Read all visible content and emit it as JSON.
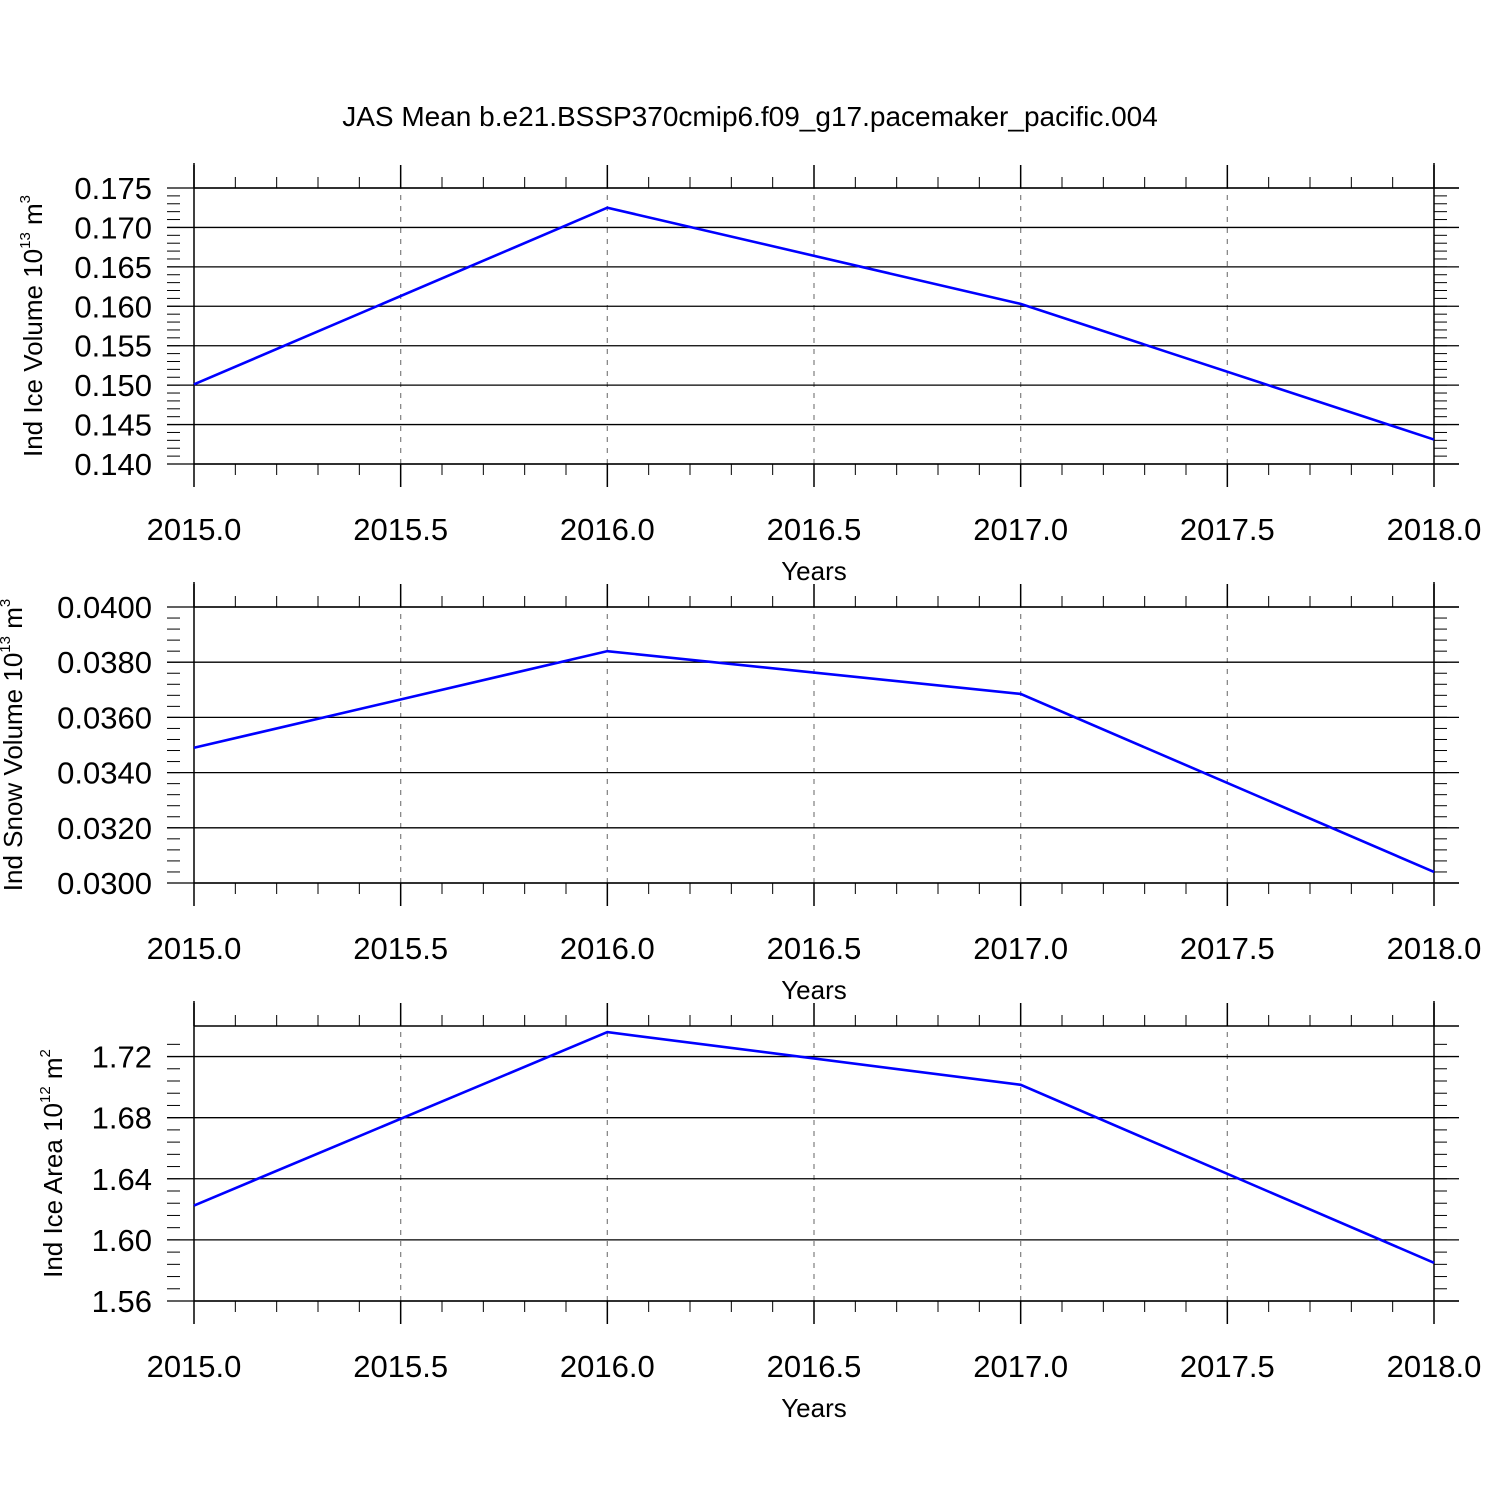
{
  "title": "JAS Mean b.e21.BSSP370cmip6.f09_g17.pacemaker_pacific.004",
  "colors": {
    "line": "#0000ff",
    "frame": "#000000",
    "grid": "#888888"
  },
  "chart_data": [
    {
      "type": "line",
      "xlabel": "Years",
      "ylabel": {
        "prefix": "Ind Ice Volume 10",
        "exp": "13",
        "unit": " m",
        "unit_exp": "3"
      },
      "x": [
        2015,
        2016,
        2017,
        2018
      ],
      "series": [
        {
          "values": [
            0.1501,
            0.1725,
            0.1603,
            0.1431
          ]
        }
      ],
      "xlim": [
        2015,
        2018
      ],
      "ylim": [
        0.14,
        0.175
      ],
      "xticks": [
        2015.0,
        2015.5,
        2016.0,
        2016.5,
        2017.0,
        2017.5,
        2018.0
      ],
      "xtick_labels": [
        "2015.0",
        "2015.5",
        "2016.0",
        "2016.5",
        "2017.0",
        "2017.5",
        "2018.0"
      ],
      "yticks": [
        0.14,
        0.145,
        0.15,
        0.155,
        0.16,
        0.165,
        0.17,
        0.175
      ],
      "ytick_labels": [
        "0.140",
        "0.145",
        "0.150",
        "0.155",
        "0.160",
        "0.165",
        "0.170",
        "0.175"
      ],
      "x_minor_step": 0.1,
      "y_minor_step": 0.001,
      "grid": "vertical dashed at major x ticks"
    },
    {
      "type": "line",
      "xlabel": "Years",
      "ylabel": {
        "prefix": "Ind Snow Volume 10",
        "exp": "13",
        "unit": " m",
        "unit_exp": "3"
      },
      "x": [
        2015,
        2016,
        2017,
        2018
      ],
      "series": [
        {
          "values": [
            0.0349,
            0.0384,
            0.03685,
            0.0304
          ]
        }
      ],
      "xlim": [
        2015,
        2018
      ],
      "ylim": [
        0.03,
        0.04
      ],
      "xticks": [
        2015.0,
        2015.5,
        2016.0,
        2016.5,
        2017.0,
        2017.5,
        2018.0
      ],
      "xtick_labels": [
        "2015.0",
        "2015.5",
        "2016.0",
        "2016.5",
        "2017.0",
        "2017.5",
        "2018.0"
      ],
      "yticks": [
        0.03,
        0.032,
        0.034,
        0.036,
        0.038,
        0.04
      ],
      "ytick_labels": [
        "0.0300",
        "0.0320",
        "0.0340",
        "0.0360",
        "0.0380",
        "0.0400"
      ],
      "x_minor_step": 0.1,
      "y_minor_step": 0.0004,
      "grid": "vertical dashed at major x ticks"
    },
    {
      "type": "line",
      "xlabel": "Years",
      "ylabel": {
        "prefix": "Ind Ice Area 10",
        "exp": "12",
        "unit": " m",
        "unit_exp": "2"
      },
      "x": [
        2015,
        2016,
        2017,
        2018
      ],
      "series": [
        {
          "values": [
            1.6225,
            1.736,
            1.7015,
            1.585
          ]
        }
      ],
      "xlim": [
        2015,
        2018
      ],
      "ylim": [
        1.56,
        1.74
      ],
      "xticks": [
        2015.0,
        2015.5,
        2016.0,
        2016.5,
        2017.0,
        2017.5,
        2018.0
      ],
      "xtick_labels": [
        "2015.0",
        "2015.5",
        "2016.0",
        "2016.5",
        "2017.0",
        "2017.5",
        "2018.0"
      ],
      "yticks": [
        1.56,
        1.6,
        1.64,
        1.68,
        1.72
      ],
      "ytick_labels": [
        "1.56",
        "1.60",
        "1.64",
        "1.68",
        "1.72"
      ],
      "x_minor_step": 0.1,
      "y_minor_step": 0.008,
      "grid": "vertical dashed at major x ticks"
    }
  ]
}
